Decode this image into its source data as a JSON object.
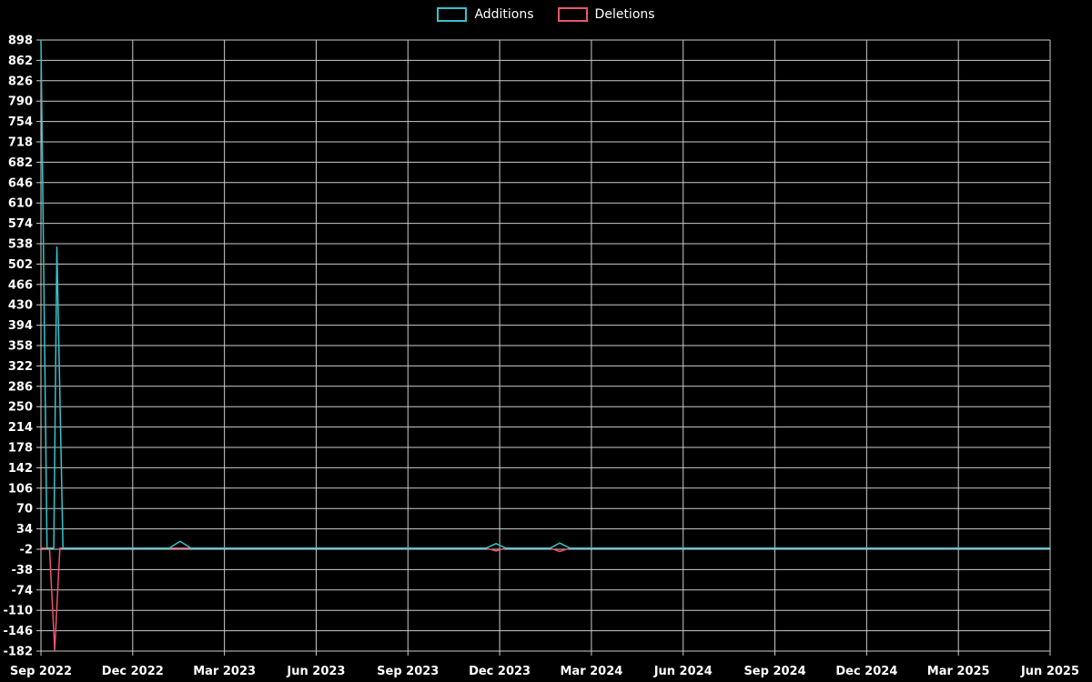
{
  "chart_data": {
    "type": "line",
    "title": "",
    "legend_position": "top-center",
    "background": "#000000",
    "grid": true,
    "grid_color": "#cccccc",
    "text_color": "#ffffff",
    "legend": [
      {
        "label": "Additions",
        "color": "#36c3cc"
      },
      {
        "label": "Deletions",
        "color": "#e9556d"
      }
    ],
    "x_ticks": [
      "Sep 2022",
      "Dec 2022",
      "Mar 2023",
      "Jun 2023",
      "Sep 2023",
      "Dec 2023",
      "Mar 2024",
      "Jun 2024",
      "Sep 2024",
      "Dec 2024",
      "Mar 2025",
      "Jun 2025"
    ],
    "x_tick_step_months": 3,
    "xlim_months": [
      0,
      33
    ],
    "y_ticks": [
      898,
      862,
      826,
      790,
      754,
      718,
      682,
      646,
      610,
      574,
      538,
      502,
      466,
      430,
      394,
      358,
      322,
      286,
      250,
      214,
      178,
      142,
      106,
      70,
      34,
      -2,
      -38,
      -74,
      -110,
      -146,
      -182
    ],
    "ylim": [
      -182,
      898
    ],
    "series": [
      {
        "name": "Additions",
        "color": "#36c3cc",
        "points": [
          [
            0,
            898
          ],
          [
            0.2,
            0
          ],
          [
            0.42,
            0
          ],
          [
            0.52,
            532
          ],
          [
            0.72,
            0
          ],
          [
            4.2,
            0
          ],
          [
            4.55,
            12
          ],
          [
            4.9,
            0
          ],
          [
            14.55,
            0
          ],
          [
            14.88,
            8
          ],
          [
            15.2,
            0
          ],
          [
            16.65,
            0
          ],
          [
            16.96,
            9
          ],
          [
            17.3,
            0
          ],
          [
            33,
            0
          ]
        ]
      },
      {
        "name": "Deletions",
        "color": "#e9556d",
        "points": [
          [
            0,
            0
          ],
          [
            0.28,
            0
          ],
          [
            0.45,
            -180
          ],
          [
            0.62,
            0
          ],
          [
            14.55,
            0
          ],
          [
            14.88,
            -5
          ],
          [
            15.2,
            0
          ],
          [
            16.65,
            0
          ],
          [
            16.96,
            -6
          ],
          [
            17.3,
            0
          ],
          [
            33,
            0
          ]
        ]
      }
    ]
  }
}
